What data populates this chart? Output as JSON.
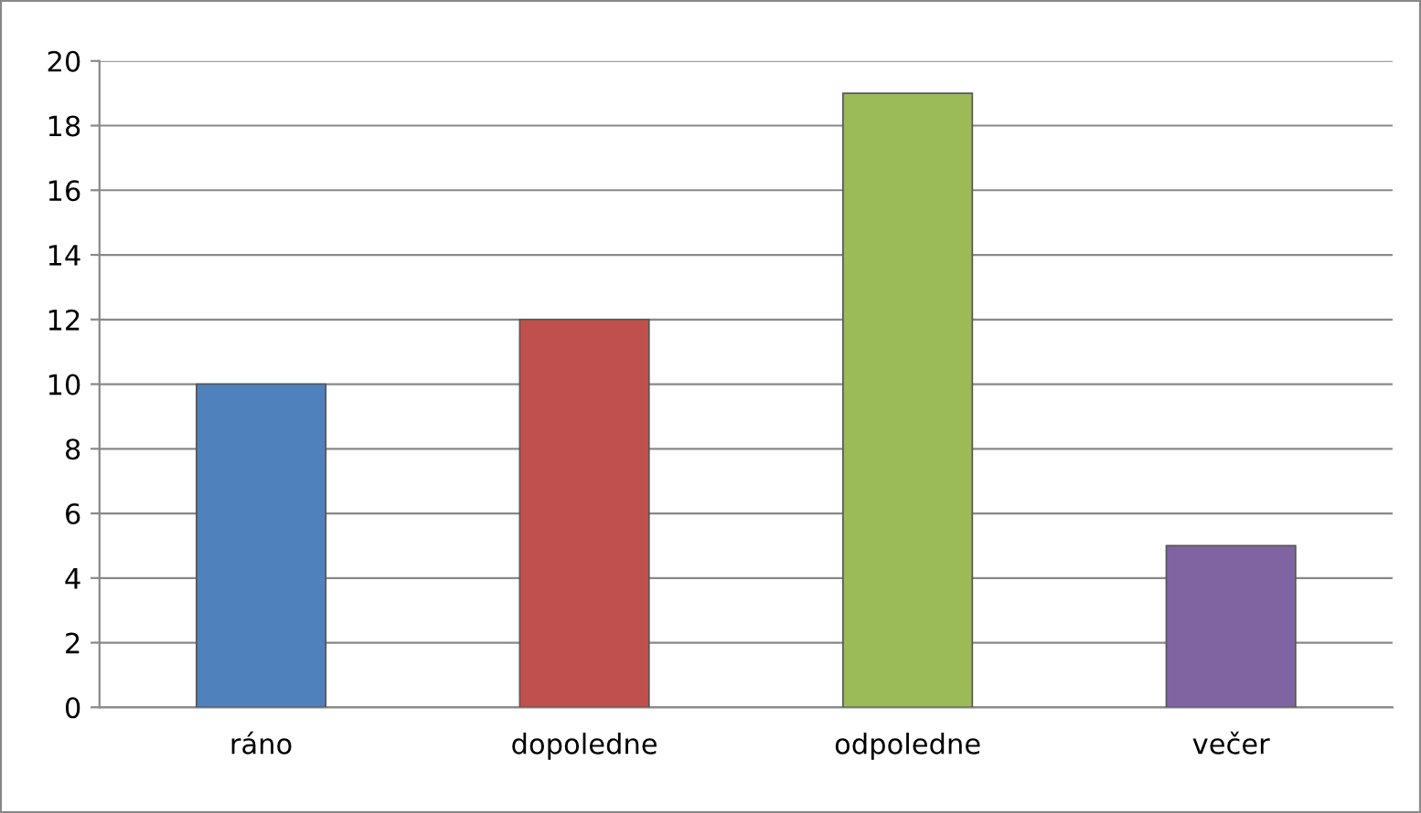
{
  "chart_data": {
    "type": "bar",
    "categories": [
      "ráno",
      "dopoledne",
      "odpoledne",
      "večer"
    ],
    "values": [
      10,
      12,
      19,
      5
    ],
    "colors": [
      "#4f81bd",
      "#c0504d",
      "#9bbb59",
      "#8064a2"
    ],
    "ylim": [
      0,
      20
    ],
    "yticks": [
      0,
      2,
      4,
      6,
      8,
      10,
      12,
      14,
      16,
      18,
      20
    ],
    "grid": "y"
  }
}
